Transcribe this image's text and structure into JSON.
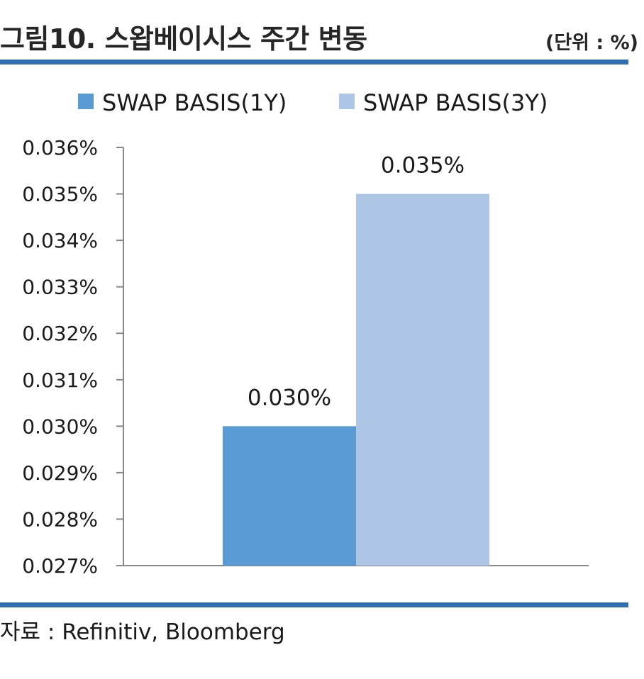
{
  "header": {
    "title": "그림10. 스왑베이시스 주간 변동",
    "unit": "(단위 : %)"
  },
  "footer": {
    "source": "자료 : Refinitiv, Bloomberg"
  },
  "colors": {
    "rule": "#2f6fb0",
    "axis": "#888888"
  },
  "chart_data": {
    "type": "bar",
    "title": "",
    "xlabel": "",
    "ylabel": "",
    "ylim": [
      0.027,
      0.036
    ],
    "yticks": [
      0.027,
      0.028,
      0.029,
      0.03,
      0.031,
      0.032,
      0.033,
      0.034,
      0.035,
      0.036
    ],
    "ytick_labels": [
      "0.027%",
      "0.028%",
      "0.029%",
      "0.030%",
      "0.031%",
      "0.032%",
      "0.033%",
      "0.034%",
      "0.035%",
      "0.036%"
    ],
    "grid": false,
    "legend_position": "top",
    "series": [
      {
        "name": "SWAP BASIS(1Y)",
        "value": 0.03,
        "label": "0.030%",
        "color": "#5b9bd5"
      },
      {
        "name": "SWAP BASIS(3Y)",
        "value": 0.035,
        "label": "0.035%",
        "color": "#adc6e5"
      }
    ]
  }
}
